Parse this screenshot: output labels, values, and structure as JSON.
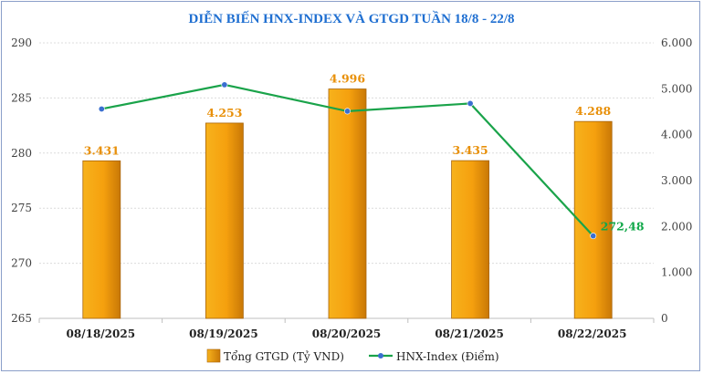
{
  "chart_data": {
    "type": "bar",
    "title": "DIỄN BIẾN HNX-INDEX VÀ GTGD TUẦN 18/8 - 22/8",
    "categories": [
      "08/18/2025",
      "08/19/2025",
      "08/20/2025",
      "08/21/2025",
      "08/22/2025"
    ],
    "series": [
      {
        "name": "Tổng GTGD (Tỷ VND)",
        "type": "bar",
        "axis": "right",
        "values": [
          3431,
          4253,
          4996,
          3435,
          4288
        ],
        "labels": [
          "3.431",
          "4.253",
          "4.996",
          "3.435",
          "4.288"
        ],
        "color": "#f5a00e"
      },
      {
        "name": "HNX-Index (Điểm)",
        "type": "line",
        "axis": "left",
        "values": [
          284.0,
          286.2,
          283.8,
          284.5,
          272.48
        ],
        "labels": [
          null,
          null,
          null,
          null,
          "272,48"
        ],
        "color": "#1aa34a",
        "marker_color": "#3a6fd0"
      }
    ],
    "y_left": {
      "lim": [
        265,
        290
      ],
      "ticks": [
        "265",
        "270",
        "275",
        "280",
        "285",
        "290"
      ]
    },
    "y_right": {
      "lim": [
        0,
        6000
      ],
      "ticks": [
        "0",
        "1.000",
        "2.000",
        "3.000",
        "4.000",
        "5.000",
        "6.000"
      ]
    },
    "grid": true,
    "legend_position": "bottom"
  }
}
